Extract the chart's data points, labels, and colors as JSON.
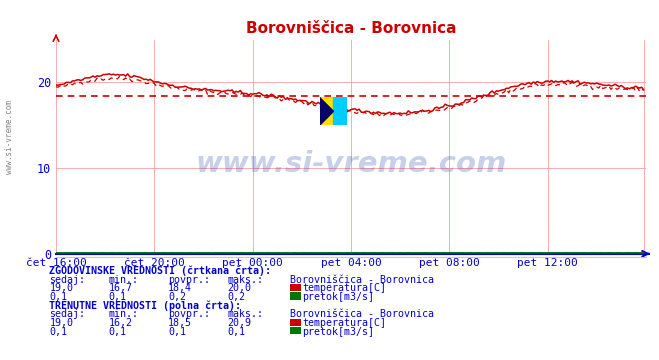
{
  "title": "Borovniščica - Borovnica",
  "title_color": "#cc0000",
  "bg_color": "#ffffff",
  "plot_bg_color": "#ffffff",
  "grid_color": "#ffaaaa",
  "axis_color": "#0000cc",
  "x_tick_labels": [
    "čet 16:00",
    "čet 20:00",
    "pet 00:00",
    "pet 04:00",
    "pet 08:00",
    "pet 12:00"
  ],
  "x_tick_positions": [
    0,
    48,
    96,
    144,
    192,
    240
  ],
  "y_ticks": [
    0,
    10,
    20
  ],
  "ylim": [
    0,
    25
  ],
  "xlim": [
    0,
    288
  ],
  "temp_color": "#cc0000",
  "flow_color": "#007700",
  "watermark_text": "www.si-vreme.com",
  "watermark_color": "#2244aa",
  "watermark_alpha": 0.25,
  "avg_temp_hist": 18.4,
  "avg_temp_curr": 18.5,
  "legend_title_hist": "ZGODOVINSKE VREDNOSTI (črtkana črta):",
  "legend_title_curr": "TRENUTNE VREDNOSTI (polna črta):",
  "legend_station": "Borovniščica - Borovnica",
  "legend_headers": [
    "sedaj:",
    "min.:",
    "povpr.:",
    "maks.:"
  ],
  "hist_temp": {
    "sedaj": "19,0",
    "min": "16,7",
    "povpr": "18,4",
    "maks": "20,0"
  },
  "hist_flow": {
    "sedaj": "0,1",
    "min": "0,1",
    "povpr": "0,2",
    "maks": "0,2"
  },
  "curr_temp": {
    "sedaj": "19,0",
    "min": "16,2",
    "povpr": "18,5",
    "maks": "20,9"
  },
  "curr_flow": {
    "sedaj": "0,1",
    "min": "0,1",
    "povpr": "0,1",
    "maks": "0,1"
  },
  "logo_colors": [
    "#ffdd00",
    "#00ccff",
    "#000066"
  ],
  "left_text": "www.si-vreme.com"
}
